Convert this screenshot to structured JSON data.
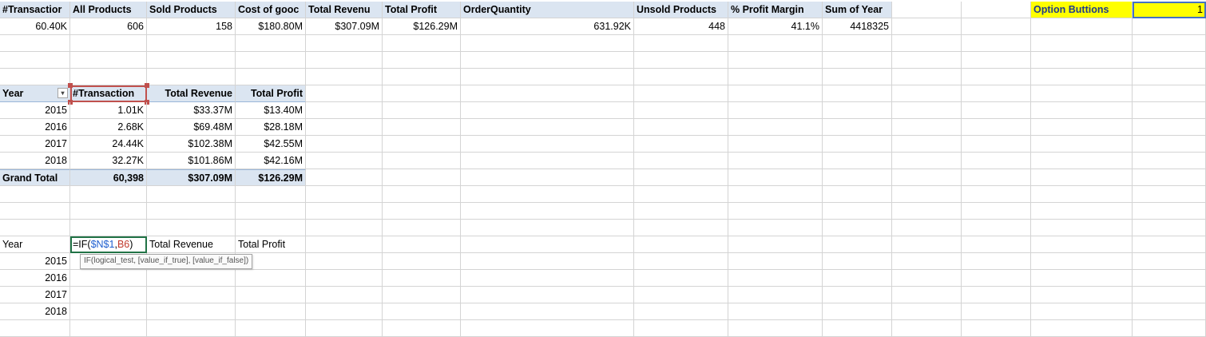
{
  "row1": {
    "headers": [
      "#Transactior",
      "All Products",
      "Sold Products",
      "Cost of gooc",
      "Total Revenu",
      "Total Profit",
      "OrderQuantity",
      "Unsold Products",
      "% Profit Margin",
      "Sum of Year"
    ],
    "option_label": "Option Buttions",
    "option_value": "1"
  },
  "row2": {
    "values": [
      "60.40K",
      "606",
      "158",
      "$180.80M",
      "$307.09M",
      "$126.29M",
      "631.92K",
      "448",
      "41.1%",
      "4418325"
    ]
  },
  "pivot": {
    "headers": [
      "Year",
      "#Transaction",
      "Total Revenue",
      "Total Profit"
    ],
    "rows": [
      [
        "2015",
        "1.01K",
        "$33.37M",
        "$13.40M"
      ],
      [
        "2016",
        "2.68K",
        "$69.48M",
        "$28.18M"
      ],
      [
        "2017",
        "24.44K",
        "$102.38M",
        "$42.55M"
      ],
      [
        "2018",
        "32.27K",
        "$101.86M",
        "$42.16M"
      ]
    ],
    "total": [
      "Grand Total",
      "60,398",
      "$307.09M",
      "$126.29M"
    ]
  },
  "lower": {
    "year_label": "Year",
    "formula_prefix": "=IF(",
    "formula_ref1": "$N$1",
    "formula_comma": ",",
    "formula_ref2": "B6",
    "formula_suffix": ")",
    "revenue_label": "Total Revenue",
    "profit_label": "Total Profit",
    "tooltip": "IF(logical_test, [value_if_true], [value_if_false])",
    "years": [
      "2015",
      "2016",
      "2017",
      "2018"
    ]
  },
  "colors": {
    "header_fill": "#dbe5f1",
    "option_fill": "#ffff00",
    "edit_border": "#217346",
    "select_border": "#c0504d"
  }
}
